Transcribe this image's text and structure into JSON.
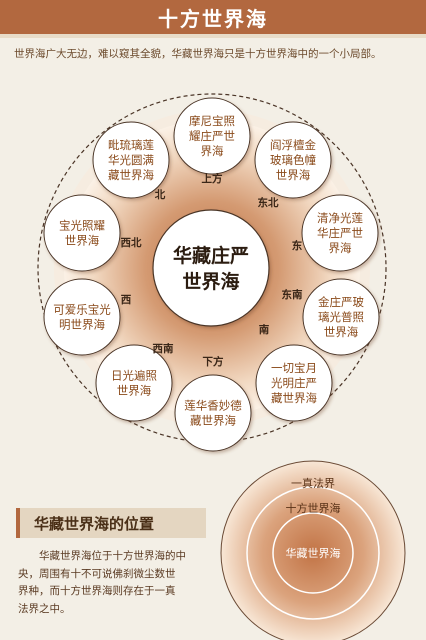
{
  "title": "十方世界海",
  "intro": "世界海广大无边，难以窥其全貌，华藏世界海只是十方世界海中的一个小局部。",
  "center": {
    "line1": "华藏庄严",
    "line2": "世界海"
  },
  "nodes": [
    {
      "id": "up",
      "lines": [
        "摩尼宝照",
        "耀庄严世",
        "界海"
      ]
    },
    {
      "id": "ne",
      "lines": [
        "阎浮檀金",
        "玻璃色幢",
        "世界海"
      ]
    },
    {
      "id": "e",
      "lines": [
        "清净光莲",
        "华庄严世",
        "界海"
      ]
    },
    {
      "id": "se",
      "lines": [
        "金庄严玻",
        "璃光普照",
        "世界海"
      ]
    },
    {
      "id": "s",
      "lines": [
        "一切宝月",
        "光明庄严",
        "藏世界海"
      ]
    },
    {
      "id": "down",
      "lines": [
        "莲华香妙德",
        "藏世界海"
      ]
    },
    {
      "id": "sw",
      "lines": [
        "日光遍照",
        "世界海"
      ]
    },
    {
      "id": "w",
      "lines": [
        "可爱乐宝光",
        "明世界海"
      ]
    },
    {
      "id": "nw",
      "lines": [
        "宝光照耀",
        "世界海"
      ]
    },
    {
      "id": "n",
      "lines": [
        "毗琉璃莲",
        "华光圆满",
        "藏世界海"
      ]
    }
  ],
  "directions": {
    "up": "上方",
    "ne": "东北",
    "e": "东",
    "se": "东南",
    "s": "南",
    "down": "下方",
    "sw": "西南",
    "w": "西",
    "nw": "西北",
    "n": "北"
  },
  "section_title": "华藏世界海的位置",
  "description": "华藏世界海位于十方世界海的中央，周围有十不可说佛刹微尘数世界种，而十方世界海则存在于一真法界之中。",
  "rings": {
    "outer": "一真法界",
    "middle": "十方世界海",
    "inner": "华藏世界海"
  },
  "colors": {
    "accent": "#b2683f",
    "ring_center": "#c47a4d",
    "ring_edge": "#fbeee0"
  }
}
